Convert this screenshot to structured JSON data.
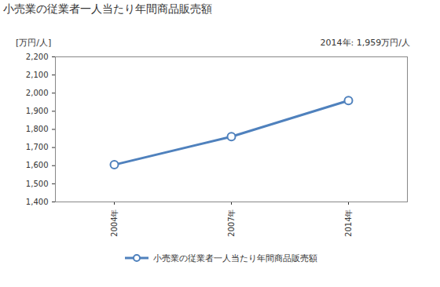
{
  "chart_data": {
    "type": "line",
    "title": "小売業の従業者一人当たり年間商品販売額",
    "y_label": "[万円/人]",
    "annotation": "2014年: 1,959万円/人",
    "categories": [
      "2004年",
      "2007年",
      "2014年"
    ],
    "series": [
      {
        "name": "小売業の従業者一人当たり年間商品販売額",
        "color": "#4f81bd",
        "marker": "circle",
        "line_style": "solid",
        "values": [
          1605,
          1760,
          1959
        ]
      }
    ],
    "ylim": [
      1400,
      2200
    ],
    "yticks": [
      {
        "value": 1400,
        "label": "1,400"
      },
      {
        "value": 1500,
        "label": "1,500"
      },
      {
        "value": 1600,
        "label": "1,600"
      },
      {
        "value": 1700,
        "label": "1,700"
      },
      {
        "value": 1800,
        "label": "1,800"
      },
      {
        "value": 1900,
        "label": "1,900"
      },
      {
        "value": 2000,
        "label": "2,000"
      },
      {
        "value": 2100,
        "label": "2,100"
      },
      {
        "value": 2200,
        "label": "2,200"
      }
    ],
    "grid": false,
    "legend": "bottom"
  }
}
